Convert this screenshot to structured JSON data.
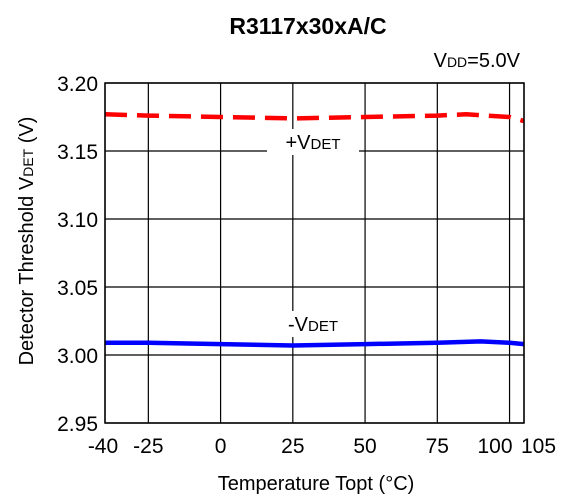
{
  "chart_data": {
    "type": "line",
    "title": "R3117x30xA/C",
    "condition": {
      "main": "V",
      "sub": "DD",
      "suffix": "=5.0V"
    },
    "xlabel": "Temperature Topt (°C)",
    "ylabel": {
      "main": "Detector Threshold V",
      "sub": "DET",
      "suffix": " (V)"
    },
    "xlim": [
      -40,
      105
    ],
    "ylim": [
      2.95,
      3.2
    ],
    "x_ticks": [
      -40,
      -25,
      0,
      25,
      50,
      75,
      100,
      105
    ],
    "x_tick_labels": [
      "-40",
      "-25",
      "0",
      "25",
      "50",
      "75",
      "100",
      "105"
    ],
    "y_ticks": [
      2.95,
      3.0,
      3.05,
      3.1,
      3.15,
      3.2
    ],
    "y_tick_labels": [
      "2.95",
      "3.00",
      "3.05",
      "3.10",
      "3.15",
      "3.20"
    ],
    "grid": true,
    "series": [
      {
        "name": {
          "main": "+V",
          "sub": "DET"
        },
        "color": "#ff0000",
        "style": "dashed",
        "x": [
          -40,
          -25,
          0,
          25,
          50,
          75,
          85,
          100,
          105
        ],
        "y": [
          3.177,
          3.176,
          3.175,
          3.174,
          3.175,
          3.176,
          3.177,
          3.175,
          3.172
        ]
      },
      {
        "name": {
          "main": "-V",
          "sub": "DET"
        },
        "color": "#0000ff",
        "style": "solid",
        "x": [
          -40,
          -25,
          0,
          25,
          50,
          75,
          90,
          100,
          105
        ],
        "y": [
          3.009,
          3.009,
          3.008,
          3.007,
          3.008,
          3.009,
          3.01,
          3.009,
          3.008
        ]
      }
    ]
  }
}
